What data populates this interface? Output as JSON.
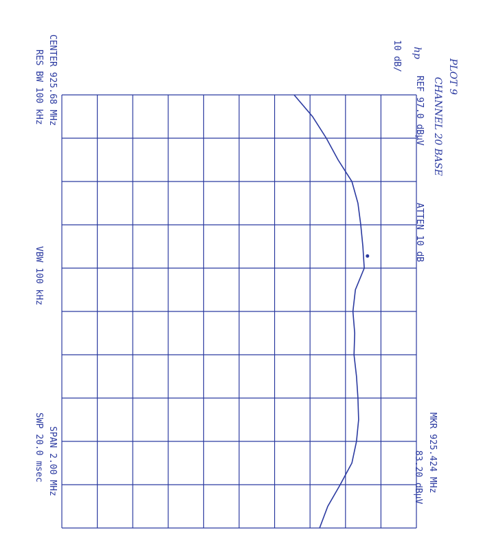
{
  "chart_data": {
    "type": "line",
    "title": "PLOT 9",
    "subtitle": "CHANNEL 20 BASE",
    "logo": "hp",
    "header": [
      "REF 97.0 dBµV",
      "ATTEN 10 dB",
      "10 dB/"
    ],
    "marker": [
      "MKR 925.424 MHz",
      "83.20 dBµV"
    ],
    "footer": [
      "CENTER 925.68 MHz",
      "RES BW 100 kHz",
      "VBW 100 kHz",
      "SPAN 2.00 MHz",
      "SWP 20.0 msec"
    ],
    "marker_point": {
      "x": 925.424,
      "value": 83.2
    },
    "x": [
      924.68,
      924.78,
      924.88,
      924.98,
      925.08,
      925.18,
      925.28,
      925.38,
      925.48,
      925.58,
      925.68,
      925.78,
      925.88,
      925.98,
      926.08,
      926.18,
      926.28,
      926.38,
      926.48,
      926.58,
      926.68
    ],
    "values": [
      62.5,
      67.7,
      71.6,
      74.9,
      78.8,
      80.5,
      81.3,
      81.9,
      82.3,
      79.8,
      79.1,
      79.6,
      79.4,
      80.1,
      80.5,
      80.7,
      80.1,
      78.8,
      75.5,
      72.0,
      69.7
    ],
    "color": "#2b3aa0",
    "xlim": [
      924.68,
      926.68
    ],
    "ylim": [
      -3,
      97
    ]
  }
}
